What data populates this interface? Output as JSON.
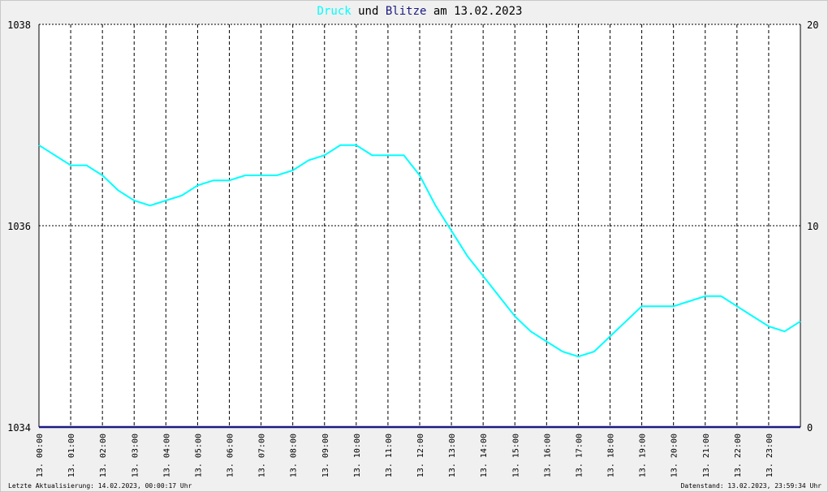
{
  "colors": {
    "background": "#f0f0f0",
    "plot_background": "#ffffff",
    "druck": "#00ffff",
    "blitze": "#1a1a80",
    "text": "#000000",
    "grid": "#000000"
  },
  "title": {
    "druck": "Druck",
    "und": " und ",
    "blitze": "Blitze",
    "rest": " am 13.02.2023"
  },
  "footer": {
    "left": "Letzte Aktualisierung: 14.02.2023, 00:00:17 Uhr",
    "right": "Datenstand: 13.02.2023, 23:59:34 Uhr"
  },
  "chart_data": {
    "type": "line",
    "title": "Druck und Blitze am 13.02.2023",
    "xlabel": "",
    "ylabel": "",
    "y_left": {
      "min": 1034,
      "max": 1038,
      "ticks": [
        1034,
        1036,
        1038
      ]
    },
    "y_right": {
      "min": 0,
      "max": 20,
      "ticks": [
        0,
        10,
        20
      ]
    },
    "x_range_hours": [
      0,
      24
    ],
    "x_tick_labels": [
      "13. 00:00",
      "13. 01:00",
      "13. 02:00",
      "13. 03:00",
      "13. 04:00",
      "13. 05:00",
      "13. 06:00",
      "13. 07:00",
      "13. 08:00",
      "13. 09:00",
      "13. 10:00",
      "13. 11:00",
      "13. 12:00",
      "13. 13:00",
      "13. 14:00",
      "13. 15:00",
      "13. 16:00",
      "13. 17:00",
      "13. 18:00",
      "13. 19:00",
      "13. 20:00",
      "13. 21:00",
      "13. 22:00",
      "13. 23:00"
    ],
    "grid": true,
    "series": [
      {
        "name": "Druck",
        "axis": "left",
        "x": [
          0,
          0.5,
          1,
          1.5,
          2,
          2.5,
          3,
          3.5,
          4,
          4.5,
          5,
          5.5,
          6,
          6.5,
          7,
          7.5,
          8,
          8.5,
          9,
          9.5,
          10,
          10.5,
          11,
          11.5,
          12,
          12.5,
          13,
          13.5,
          14,
          14.5,
          15,
          15.5,
          16,
          16.5,
          17,
          17.5,
          18,
          18.5,
          19,
          19.5,
          20,
          20.5,
          21,
          21.5,
          22,
          22.5,
          23,
          23.5,
          24
        ],
        "values": [
          1036.8,
          1036.7,
          1036.6,
          1036.6,
          1036.5,
          1036.35,
          1036.25,
          1036.2,
          1036.25,
          1036.3,
          1036.4,
          1036.45,
          1036.45,
          1036.5,
          1036.5,
          1036.5,
          1036.55,
          1036.65,
          1036.7,
          1036.8,
          1036.8,
          1036.7,
          1036.7,
          1036.7,
          1036.5,
          1036.2,
          1035.95,
          1035.7,
          1035.5,
          1035.3,
          1035.1,
          1034.95,
          1034.85,
          1034.75,
          1034.7,
          1034.75,
          1034.9,
          1035.05,
          1035.2,
          1035.2,
          1035.2,
          1035.25,
          1035.3,
          1035.3,
          1035.2,
          1035.1,
          1035.0,
          1034.95,
          1035.05
        ]
      },
      {
        "name": "Blitze",
        "axis": "right",
        "x": [
          0,
          24
        ],
        "values": [
          0,
          0
        ]
      }
    ]
  }
}
